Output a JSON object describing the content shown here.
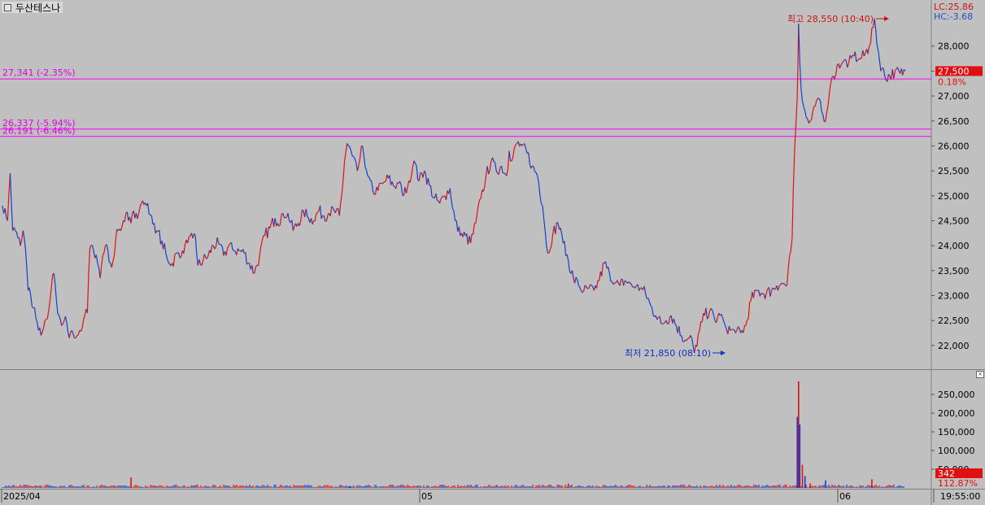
{
  "stock_name": "두산테스나",
  "header": {
    "lc_label": "LC:25.86",
    "hc_label": "HC:-3.68"
  },
  "colors": {
    "up": "#e01010",
    "down": "#1040d0",
    "hline": "#ff00ff",
    "background": "#c0c0c0"
  },
  "price_lines": [
    {
      "label": "27,341 (-2.35%)",
      "value": 27341
    },
    {
      "label": "26,337 (-5.94%)",
      "value": 26337
    },
    {
      "label": "26,191 (-6.46%)",
      "value": 26191
    }
  ],
  "annotations": {
    "high": {
      "label": "최고 28,550 (10:40)",
      "value": 28550
    },
    "low": {
      "label": "최저 21,850 (08:10)",
      "value": 21850
    }
  },
  "current": {
    "price_label": "27,500",
    "change_label": "0.18%",
    "volume_label": "342",
    "volume_pct_label": "112.87%"
  },
  "price_axis": {
    "ticks": [
      "28,000",
      "27,500",
      "27,000",
      "26,500",
      "26,000",
      "25,500",
      "25,000",
      "24,500",
      "24,000",
      "23,500",
      "23,000",
      "22,500",
      "22,000"
    ]
  },
  "volume_axis": {
    "ticks": [
      "250,000",
      "200,000",
      "150,000",
      "100,000",
      "50,000"
    ]
  },
  "date_axis": {
    "ticks": [
      "2025/04",
      "05",
      "06"
    ],
    "time_label": "19:55:00"
  },
  "chart_data": {
    "type": "line",
    "x_unit": "trading sessions (2025/04 – 2025/06)",
    "ylim": [
      21700,
      28650
    ],
    "volume_ylim": [
      0,
      285000
    ],
    "price_path": [
      [
        0,
        24800
      ],
      [
        2,
        24750
      ],
      [
        4,
        24500
      ],
      [
        6,
        25450
      ],
      [
        8,
        24300
      ],
      [
        10,
        24300
      ],
      [
        12,
        24150
      ],
      [
        14,
        24000
      ],
      [
        16,
        24300
      ],
      [
        18,
        23900
      ],
      [
        20,
        23100
      ],
      [
        22,
        23000
      ],
      [
        24,
        22750
      ],
      [
        26,
        22550
      ],
      [
        28,
        22300
      ],
      [
        30,
        22200
      ],
      [
        33,
        22500
      ],
      [
        36,
        22700
      ],
      [
        38,
        23150
      ],
      [
        40,
        23450
      ],
      [
        42,
        22900
      ],
      [
        44,
        22600
      ],
      [
        46,
        22400
      ],
      [
        48,
        22500
      ],
      [
        50,
        22450
      ],
      [
        52,
        22150
      ],
      [
        54,
        22300
      ],
      [
        56,
        22150
      ],
      [
        58,
        22200
      ],
      [
        60,
        22300
      ],
      [
        62,
        22350
      ],
      [
        64,
        22600
      ],
      [
        66,
        22650
      ],
      [
        68,
        23950
      ],
      [
        70,
        24000
      ],
      [
        72,
        23750
      ],
      [
        74,
        23650
      ],
      [
        76,
        23350
      ],
      [
        78,
        23800
      ],
      [
        80,
        24000
      ],
      [
        82,
        23900
      ],
      [
        84,
        23650
      ],
      [
        86,
        23700
      ],
      [
        88,
        24100
      ],
      [
        90,
        24300
      ],
      [
        92,
        24300
      ],
      [
        94,
        24500
      ],
      [
        96,
        24650
      ],
      [
        98,
        24500
      ],
      [
        100,
        24450
      ],
      [
        102,
        24700
      ],
      [
        104,
        24650
      ],
      [
        106,
        24650
      ],
      [
        108,
        24850
      ],
      [
        112,
        24800
      ],
      [
        116,
        24600
      ],
      [
        120,
        24300
      ],
      [
        124,
        24100
      ],
      [
        128,
        23750
      ],
      [
        132,
        23650
      ],
      [
        136,
        23850
      ],
      [
        140,
        23900
      ],
      [
        144,
        24050
      ],
      [
        148,
        24150
      ],
      [
        150,
        24200
      ],
      [
        152,
        23600
      ],
      [
        156,
        23700
      ],
      [
        160,
        23800
      ],
      [
        164,
        24000
      ],
      [
        168,
        24050
      ],
      [
        172,
        23800
      ],
      [
        176,
        24000
      ],
      [
        180,
        23900
      ],
      [
        184,
        23900
      ],
      [
        188,
        23850
      ],
      [
        192,
        23650
      ],
      [
        196,
        23450
      ],
      [
        200,
        23800
      ],
      [
        204,
        24200
      ],
      [
        208,
        24350
      ],
      [
        212,
        24550
      ],
      [
        214,
        24450
      ],
      [
        218,
        24650
      ],
      [
        222,
        24650
      ],
      [
        226,
        24300
      ],
      [
        230,
        24450
      ],
      [
        234,
        24700
      ],
      [
        238,
        24550
      ],
      [
        242,
        24500
      ],
      [
        246,
        24700
      ],
      [
        250,
        24600
      ],
      [
        254,
        24650
      ],
      [
        258,
        24700
      ],
      [
        262,
        24600
      ],
      [
        264,
        25050
      ],
      [
        266,
        25700
      ],
      [
        268,
        26050
      ],
      [
        272,
        25800
      ],
      [
        276,
        25500
      ],
      [
        280,
        26000
      ],
      [
        284,
        25400
      ],
      [
        288,
        25100
      ],
      [
        292,
        25100
      ],
      [
        296,
        25250
      ],
      [
        300,
        25350
      ],
      [
        304,
        25200
      ],
      [
        308,
        25250
      ],
      [
        312,
        25000
      ],
      [
        316,
        25300
      ],
      [
        320,
        25700
      ],
      [
        324,
        25300
      ],
      [
        328,
        25500
      ],
      [
        332,
        25200
      ],
      [
        336,
        24950
      ],
      [
        340,
        24850
      ],
      [
        344,
        25000
      ],
      [
        348,
        25150
      ],
      [
        352,
        24500
      ],
      [
        356,
        24200
      ],
      [
        360,
        24200
      ],
      [
        364,
        24050
      ],
      [
        368,
        24450
      ],
      [
        372,
        24950
      ],
      [
        376,
        25400
      ],
      [
        380,
        25700
      ],
      [
        384,
        25500
      ],
      [
        388,
        25600
      ],
      [
        392,
        25400
      ],
      [
        394,
        25900
      ],
      [
        396,
        25700
      ],
      [
        400,
        26050
      ],
      [
        404,
        26000
      ],
      [
        408,
        25850
      ],
      [
        412,
        25600
      ],
      [
        416,
        25400
      ],
      [
        420,
        24800
      ],
      [
        424,
        23850
      ],
      [
        428,
        24250
      ],
      [
        432,
        24450
      ],
      [
        436,
        24050
      ],
      [
        440,
        23700
      ],
      [
        444,
        23350
      ],
      [
        448,
        23200
      ],
      [
        452,
        23100
      ],
      [
        456,
        23150
      ],
      [
        460,
        23100
      ],
      [
        464,
        23300
      ],
      [
        468,
        23650
      ],
      [
        472,
        23450
      ],
      [
        476,
        23250
      ],
      [
        480,
        23200
      ],
      [
        484,
        23300
      ],
      [
        488,
        23250
      ],
      [
        492,
        23150
      ],
      [
        496,
        23150
      ],
      [
        500,
        23050
      ],
      [
        504,
        22800
      ],
      [
        508,
        22600
      ],
      [
        512,
        22450
      ],
      [
        516,
        22500
      ],
      [
        520,
        22600
      ],
      [
        524,
        22400
      ],
      [
        528,
        22200
      ],
      [
        532,
        22100
      ],
      [
        536,
        22150
      ],
      [
        538,
        21850
      ],
      [
        542,
        22300
      ],
      [
        546,
        22600
      ],
      [
        550,
        22700
      ],
      [
        554,
        22500
      ],
      [
        558,
        22600
      ],
      [
        562,
        22400
      ],
      [
        566,
        22300
      ],
      [
        570,
        22250
      ],
      [
        574,
        22250
      ],
      [
        578,
        22400
      ],
      [
        582,
        22900
      ],
      [
        586,
        23100
      ],
      [
        590,
        23050
      ],
      [
        594,
        23050
      ],
      [
        598,
        23100
      ],
      [
        602,
        23200
      ],
      [
        606,
        23250
      ],
      [
        610,
        23200
      ],
      [
        614,
        24150
      ],
      [
        616,
        25950
      ],
      [
        618,
        27000
      ],
      [
        619,
        28450
      ],
      [
        621,
        27150
      ],
      [
        624,
        26700
      ],
      [
        628,
        26500
      ],
      [
        632,
        26800
      ],
      [
        636,
        26900
      ],
      [
        640,
        26500
      ],
      [
        644,
        27250
      ],
      [
        646,
        27400
      ],
      [
        650,
        27650
      ],
      [
        654,
        27700
      ],
      [
        658,
        27650
      ],
      [
        662,
        27800
      ],
      [
        666,
        27750
      ],
      [
        670,
        27800
      ],
      [
        674,
        28000
      ],
      [
        678,
        28550
      ],
      [
        682,
        27700
      ],
      [
        686,
        27400
      ],
      [
        690,
        27400
      ],
      [
        694,
        27500
      ],
      [
        698,
        27450
      ],
      [
        702,
        27500
      ]
    ],
    "volume_spikes": [
      [
        100,
        28000
      ],
      [
        270,
        5000
      ],
      [
        440,
        12000
      ],
      [
        618,
        190000
      ],
      [
        619,
        285000
      ],
      [
        620,
        170000
      ],
      [
        622,
        62000
      ],
      [
        624,
        32000
      ],
      [
        628,
        12000
      ],
      [
        640,
        20000
      ],
      [
        676,
        23000
      ]
    ]
  }
}
